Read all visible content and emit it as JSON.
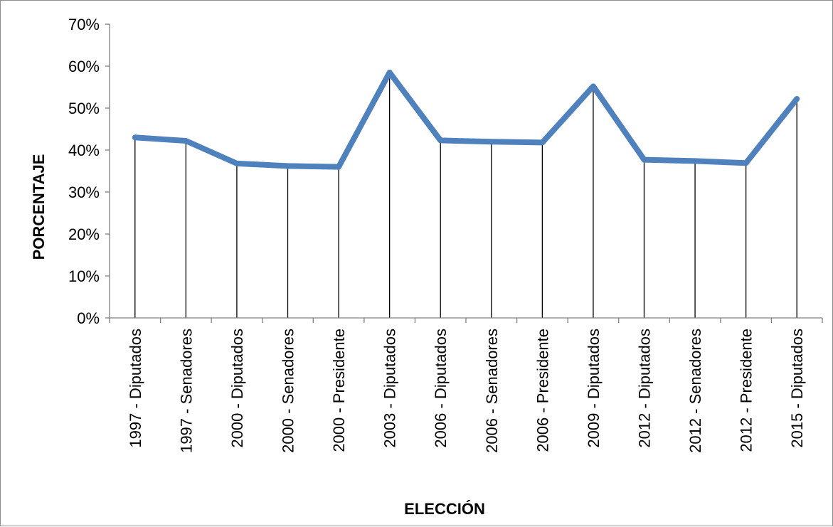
{
  "chart_data": {
    "type": "line",
    "title": "",
    "xlabel": "ELECCIÓN",
    "ylabel": "PORCENTAJE",
    "categories": [
      "1997 - Diputados",
      "1997 - Senadores",
      "2000 - Diputados",
      "2000 - Senadores",
      "2000 - Presidente",
      "2003 - Diputados",
      "2006 - Diputados",
      "2006 - Senadores",
      "2006 - Presidente",
      "2009 - Diputados",
      "2012 - Diputados",
      "2012 - Senadores",
      "2012 - Presidente",
      "2015 - Diputados"
    ],
    "series": [
      {
        "values": [
          0.43,
          0.422,
          0.368,
          0.362,
          0.36,
          0.585,
          0.423,
          0.42,
          0.418,
          0.552,
          0.377,
          0.374,
          0.369,
          0.522
        ]
      }
    ],
    "ylim": [
      0,
      0.7
    ],
    "yticks": [
      "0%",
      "10%",
      "20%",
      "30%",
      "40%",
      "50%",
      "60%",
      "70%"
    ],
    "grid": false,
    "drop_lines": true,
    "legend": "none",
    "colors": {
      "line": "#4f81bd",
      "axis": "#808080",
      "drop_line": "#000000"
    }
  }
}
